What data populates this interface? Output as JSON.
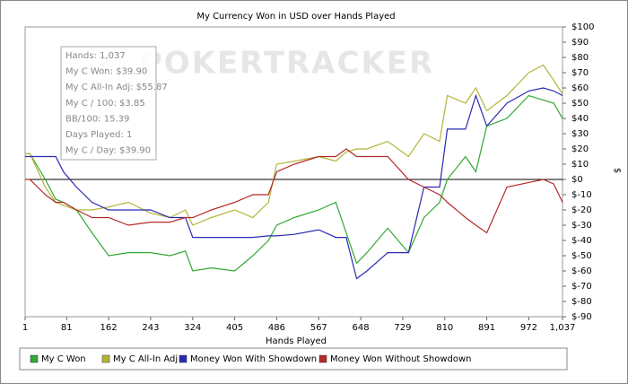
{
  "chart_data": {
    "type": "line",
    "title": "My Currency Won in USD over Hands Played",
    "xlabel": "Hands Played",
    "ylabel": "$",
    "watermark": "POKERTRACKER",
    "annotations": [
      "Hands: 1,037",
      "My C Won: $39.90",
      "My C All-In Adj: $55.87",
      "My C / 100: $3.85",
      "BB/100: 15.39",
      "Days Played: 1",
      "My C / Day: $39.90"
    ],
    "legend": "bottom",
    "x": [
      1,
      10,
      40,
      60,
      75,
      100,
      130,
      162,
      200,
      243,
      280,
      310,
      324,
      360,
      405,
      440,
      470,
      486,
      520,
      567,
      600,
      620,
      640,
      660,
      700,
      740,
      770,
      800,
      815,
      850,
      870,
      891,
      930,
      972,
      1000,
      1020,
      1037
    ],
    "series": [
      {
        "name": "My C Won",
        "color": "#33a833",
        "values": [
          17,
          17,
          0,
          -13,
          -15,
          -20,
          -35,
          -50,
          -48,
          -48,
          -50,
          -47,
          -60,
          -58,
          -60,
          -50,
          -40,
          -30,
          -25,
          -20,
          -15,
          -35,
          -55,
          -48,
          -32,
          -48,
          -25,
          -15,
          0,
          15,
          5,
          35,
          40,
          55,
          52,
          50,
          40
        ]
      },
      {
        "name": "My C All-In Adj",
        "color": "#b4b43a",
        "values": [
          17,
          17,
          -5,
          -15,
          -17,
          -20,
          -20,
          -18,
          -15,
          -22,
          -25,
          -20,
          -30,
          -25,
          -20,
          -25,
          -15,
          10,
          12,
          15,
          12,
          18,
          20,
          20,
          25,
          15,
          30,
          25,
          55,
          50,
          60,
          45,
          55,
          70,
          75,
          65,
          56
        ]
      },
      {
        "name": "Money Won With Showdown",
        "color": "#2a2ab4",
        "values": [
          15,
          15,
          15,
          15,
          5,
          -5,
          -15,
          -20,
          -20,
          -20,
          -25,
          -25,
          -38,
          -38,
          -38,
          -38,
          -37,
          -37,
          -36,
          -33,
          -38,
          -38,
          -65,
          -60,
          -48,
          -48,
          -5,
          -5,
          33,
          33,
          55,
          35,
          50,
          58,
          60,
          58,
          55
        ]
      },
      {
        "name": "Money Won Without Showdown",
        "color": "#b42a2a",
        "values": [
          0,
          0,
          -10,
          -15,
          -15,
          -20,
          -25,
          -25,
          -30,
          -28,
          -28,
          -25,
          -25,
          -20,
          -15,
          -10,
          -10,
          5,
          10,
          15,
          15,
          20,
          15,
          15,
          15,
          0,
          -5,
          -10,
          -15,
          -25,
          -30,
          -35,
          -5,
          -2,
          0,
          -3,
          -15
        ]
      }
    ],
    "xlim": [
      1,
      1037
    ],
    "xticks": [
      1,
      81,
      162,
      243,
      324,
      405,
      486,
      567,
      648,
      729,
      810,
      891,
      972,
      {
        "value": 1037,
        "label": "1,037"
      }
    ],
    "ylim": [
      -90,
      100
    ],
    "yticks": [
      {
        "value": -90,
        "label": "$-90"
      },
      {
        "value": -80,
        "label": "$-80"
      },
      {
        "value": -70,
        "label": "$-70"
      },
      {
        "value": -60,
        "label": "$-60"
      },
      {
        "value": -50,
        "label": "$-50"
      },
      {
        "value": -40,
        "label": "$-40"
      },
      {
        "value": -30,
        "label": "$-30"
      },
      {
        "value": -20,
        "label": "$-20"
      },
      {
        "value": -10,
        "label": "$-10"
      },
      {
        "value": 0,
        "label": "$0"
      },
      {
        "value": 10,
        "label": "$10"
      },
      {
        "value": 20,
        "label": "$20"
      },
      {
        "value": 30,
        "label": "$30"
      },
      {
        "value": 40,
        "label": "$40"
      },
      {
        "value": 50,
        "label": "$50"
      },
      {
        "value": 60,
        "label": "$60"
      },
      {
        "value": 70,
        "label": "$70"
      },
      {
        "value": 80,
        "label": "$80"
      },
      {
        "value": 90,
        "label": "$90"
      },
      {
        "value": 100,
        "label": "$100"
      }
    ]
  }
}
